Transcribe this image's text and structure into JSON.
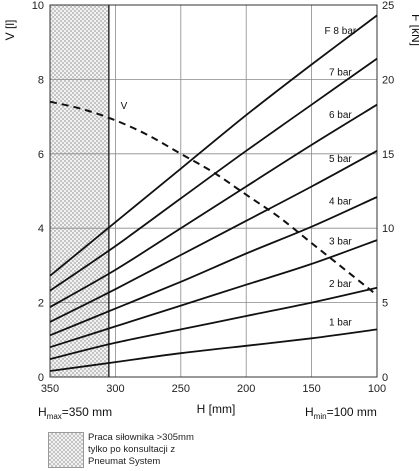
{
  "chart_data": {
    "type": "line",
    "x_axis": {
      "label": "H [mm]",
      "ticks": [
        350,
        300,
        250,
        200,
        150,
        100
      ],
      "range": [
        350,
        100
      ],
      "reversed": true,
      "h_max_label": "H",
      "h_max_sub": "max",
      "h_max_value": "=350 mm",
      "h_min_label": "H",
      "h_min_sub": "min",
      "h_min_value": "=100 mm"
    },
    "y_left": {
      "label": "V [l]",
      "ticks": [
        0,
        2,
        4,
        6,
        8,
        10
      ],
      "range": [
        0,
        10
      ]
    },
    "y_right": {
      "label": "F [kN]",
      "ticks": [
        0,
        5,
        10,
        15,
        20,
        25
      ],
      "range": [
        0,
        25
      ]
    },
    "grid": true,
    "grid_x": [
      350,
      300,
      250,
      200,
      150,
      100
    ],
    "grid_y_left": [
      0,
      2,
      4,
      6,
      8,
      10
    ],
    "hatched_region": {
      "from": 350,
      "to": 305
    },
    "force_series": [
      {
        "name": "1 bar",
        "values": [
          [
            350,
            0.4
          ],
          [
            300,
            1.0
          ],
          [
            250,
            1.6
          ],
          [
            200,
            2.1
          ],
          [
            150,
            2.6
          ],
          [
            100,
            3.2
          ]
        ]
      },
      {
        "name": "2 bar",
        "values": [
          [
            350,
            1.2
          ],
          [
            300,
            2.3
          ],
          [
            250,
            3.2
          ],
          [
            200,
            4.1
          ],
          [
            150,
            5.0
          ],
          [
            100,
            6.0
          ]
        ]
      },
      {
        "name": "3 bar",
        "values": [
          [
            350,
            2.0
          ],
          [
            300,
            3.4
          ],
          [
            250,
            4.8
          ],
          [
            200,
            6.2
          ],
          [
            150,
            7.6
          ],
          [
            100,
            9.2
          ]
        ]
      },
      {
        "name": "4 bar",
        "values": [
          [
            350,
            2.8
          ],
          [
            300,
            4.6
          ],
          [
            250,
            6.4
          ],
          [
            200,
            8.3
          ],
          [
            150,
            10.1
          ],
          [
            100,
            12.1
          ]
        ]
      },
      {
        "name": "5 bar",
        "values": [
          [
            350,
            3.7
          ],
          [
            300,
            5.9
          ],
          [
            250,
            8.2
          ],
          [
            200,
            10.5
          ],
          [
            150,
            12.8
          ],
          [
            100,
            15.2
          ]
        ]
      },
      {
        "name": "6 bar",
        "values": [
          [
            350,
            4.7
          ],
          [
            300,
            7.2
          ],
          [
            250,
            10.0
          ],
          [
            200,
            12.8
          ],
          [
            150,
            15.6
          ],
          [
            100,
            18.3
          ]
        ]
      },
      {
        "name": "7 bar",
        "values": [
          [
            350,
            5.8
          ],
          [
            300,
            8.8
          ],
          [
            250,
            12.0
          ],
          [
            200,
            15.2
          ],
          [
            150,
            18.3
          ],
          [
            100,
            21.4
          ]
        ]
      },
      {
        "name": "F 8 bar",
        "values": [
          [
            350,
            6.8
          ],
          [
            300,
            10.4
          ],
          [
            250,
            14.0
          ],
          [
            200,
            17.6
          ],
          [
            150,
            21.0
          ],
          [
            100,
            24.3
          ]
        ]
      }
    ],
    "volume_series": {
      "name": "V",
      "values": [
        [
          350,
          7.4
        ],
        [
          325,
          7.2
        ],
        [
          300,
          6.9
        ],
        [
          275,
          6.5
        ],
        [
          250,
          6.0
        ],
        [
          225,
          5.5
        ],
        [
          200,
          4.9
        ],
        [
          175,
          4.3
        ],
        [
          150,
          3.6
        ],
        [
          125,
          2.9
        ],
        [
          100,
          2.2
        ]
      ]
    }
  },
  "legend": {
    "line1": "Praca siłownika >305mm",
    "line2": "tylko po konsultacji z",
    "line3": "Pneumat System"
  },
  "colors": {
    "curve": "#111111",
    "grid": "#8a8a8a",
    "hatch": "#c4c4c4"
  }
}
